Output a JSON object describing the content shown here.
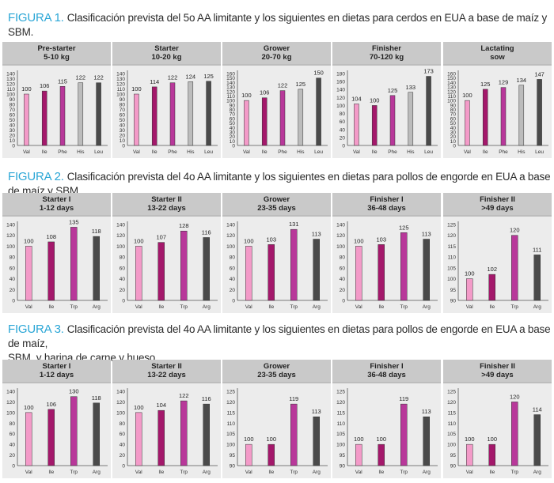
{
  "colors": {
    "bar_palette": [
      "#f39ac8",
      "#a4186b",
      "#b8389a",
      "#bcbcbc",
      "#4a4a4a"
    ],
    "title_label": "#2aa6d6",
    "panel_bg": "#ececec",
    "header_bg": "#c9c9c9"
  },
  "figures": [
    {
      "label": "FIGURA 1.",
      "title": "Clasificación prevista del 5o AA limitante y los siguientes en dietas para cerdos en EUA a base de maíz y SBM.",
      "title_line2": ""
    },
    {
      "label": "FIGURA 2.",
      "title": "Clasificación prevista del 4o AA limitante y los siguientes en dietas para pollos de engorde en EUA a base de maíz y SBM.",
      "title_line2": ""
    },
    {
      "label": "FIGURA 3.",
      "title": "Clasificación prevista del 4o AA limitante y los siguientes en dietas para pollos de engorde en EUA a base de maíz,",
      "title_line2": "SBM, y harina de carne y hueso."
    }
  ],
  "chart_data": [
    {
      "figure": 1,
      "type": "bar",
      "title": "Pre-starter",
      "subtitle": "5-10 kg",
      "categories": [
        "Val",
        "Ile",
        "Phe",
        "His",
        "Leu"
      ],
      "values": [
        100,
        106,
        115,
        122,
        122
      ],
      "ylim": [
        0,
        140
      ],
      "yticks": [
        0,
        10,
        20,
        30,
        40,
        50,
        60,
        70,
        80,
        90,
        100,
        110,
        120,
        130,
        140
      ],
      "xlabel": "",
      "ylabel": ""
    },
    {
      "figure": 1,
      "type": "bar",
      "title": "Starter",
      "subtitle": "10-20 kg",
      "categories": [
        "Val",
        "Ile",
        "Phe",
        "His",
        "Leu"
      ],
      "values": [
        100,
        114,
        122,
        124,
        125
      ],
      "ylim": [
        0,
        140
      ],
      "yticks": [
        0,
        10,
        20,
        30,
        40,
        50,
        60,
        70,
        80,
        90,
        100,
        110,
        120,
        130,
        140
      ],
      "xlabel": "",
      "ylabel": ""
    },
    {
      "figure": 1,
      "type": "bar",
      "title": "Grower",
      "subtitle": "20-70 kg",
      "categories": [
        "Val",
        "Ile",
        "Phe",
        "His",
        "Leu"
      ],
      "values": [
        100,
        106,
        122,
        125,
        150
      ],
      "ylim": [
        0,
        160
      ],
      "yticks": [
        0,
        10,
        20,
        30,
        40,
        50,
        60,
        70,
        80,
        90,
        100,
        110,
        120,
        130,
        140,
        150,
        160
      ],
      "xlabel": "",
      "ylabel": ""
    },
    {
      "figure": 1,
      "type": "bar",
      "title": "Finisher",
      "subtitle": "70-120 kg",
      "categories": [
        "Val",
        "Ile",
        "Phe",
        "His",
        "Leu"
      ],
      "values": [
        104,
        100,
        125,
        133,
        173
      ],
      "ylim": [
        0,
        180
      ],
      "yticks": [
        0,
        20,
        40,
        60,
        80,
        100,
        120,
        140,
        160,
        180
      ],
      "xlabel": "",
      "ylabel": ""
    },
    {
      "figure": 1,
      "type": "bar",
      "title": "Lactating",
      "subtitle": "sow",
      "categories": [
        "Val",
        "Ile",
        "Phe",
        "His",
        "Leu"
      ],
      "values": [
        100,
        125,
        129,
        134,
        147
      ],
      "ylim": [
        0,
        160
      ],
      "yticks": [
        0,
        10,
        20,
        30,
        40,
        50,
        60,
        70,
        80,
        90,
        100,
        110,
        120,
        130,
        140,
        150,
        160
      ],
      "xlabel": "",
      "ylabel": ""
    },
    {
      "figure": 2,
      "type": "bar",
      "title": "Starter I",
      "subtitle": "1-12 days",
      "categories": [
        "Val",
        "Ile",
        "Trp",
        "Arg"
      ],
      "values": [
        100,
        108,
        135,
        118
      ],
      "ylim": [
        0,
        140
      ],
      "yticks": [
        0,
        20,
        40,
        60,
        80,
        100,
        120,
        140
      ],
      "xlabel": "",
      "ylabel": ""
    },
    {
      "figure": 2,
      "type": "bar",
      "title": "Starter II",
      "subtitle": "13-22 days",
      "categories": [
        "Val",
        "Ile",
        "Trp",
        "Arg"
      ],
      "values": [
        100,
        107,
        128,
        116
      ],
      "ylim": [
        0,
        140
      ],
      "yticks": [
        0,
        20,
        40,
        60,
        80,
        100,
        120,
        140
      ],
      "xlabel": "",
      "ylabel": ""
    },
    {
      "figure": 2,
      "type": "bar",
      "title": "Grower",
      "subtitle": "23-35 days",
      "categories": [
        "Val",
        "Ile",
        "Trp",
        "Arg"
      ],
      "values": [
        100,
        103,
        131,
        113
      ],
      "ylim": [
        0,
        140
      ],
      "yticks": [
        0,
        20,
        40,
        60,
        80,
        100,
        120,
        140
      ],
      "xlabel": "",
      "ylabel": ""
    },
    {
      "figure": 2,
      "type": "bar",
      "title": "Finisher I",
      "subtitle": "36-48 days",
      "categories": [
        "Val",
        "Ile",
        "Trp",
        "Arg"
      ],
      "values": [
        100,
        103,
        125,
        113
      ],
      "ylim": [
        0,
        140
      ],
      "yticks": [
        0,
        20,
        40,
        60,
        80,
        100,
        120,
        140
      ],
      "xlabel": "",
      "ylabel": ""
    },
    {
      "figure": 2,
      "type": "bar",
      "title": "Finisher II",
      "subtitle": ">49 days",
      "categories": [
        "Val",
        "Ile",
        "Trp",
        "Arg"
      ],
      "values": [
        100,
        102,
        120,
        111
      ],
      "ylim": [
        90,
        125
      ],
      "yticks": [
        90,
        95,
        100,
        105,
        110,
        115,
        120,
        125
      ],
      "xlabel": "",
      "ylabel": ""
    },
    {
      "figure": 3,
      "type": "bar",
      "title": "Starter I",
      "subtitle": "1-12 days",
      "categories": [
        "Val",
        "Ile",
        "Trp",
        "Arg"
      ],
      "values": [
        100,
        106,
        130,
        118
      ],
      "ylim": [
        0,
        140
      ],
      "yticks": [
        0,
        20,
        40,
        60,
        80,
        100,
        120,
        140
      ],
      "xlabel": "",
      "ylabel": ""
    },
    {
      "figure": 3,
      "type": "bar",
      "title": "Starter II",
      "subtitle": "13-22 days",
      "categories": [
        "Val",
        "Ile",
        "Trp",
        "Arg"
      ],
      "values": [
        100,
        104,
        122,
        116
      ],
      "ylim": [
        0,
        140
      ],
      "yticks": [
        0,
        20,
        40,
        60,
        80,
        100,
        120,
        140
      ],
      "xlabel": "",
      "ylabel": ""
    },
    {
      "figure": 3,
      "type": "bar",
      "title": "Grower",
      "subtitle": "23-35 days",
      "categories": [
        "Val",
        "Ile",
        "Trp",
        "Arg"
      ],
      "values": [
        100,
        100,
        119,
        113
      ],
      "ylim": [
        90,
        125
      ],
      "yticks": [
        90,
        95,
        100,
        105,
        110,
        115,
        120,
        125
      ],
      "xlabel": "",
      "ylabel": ""
    },
    {
      "figure": 3,
      "type": "bar",
      "title": "Finisher I",
      "subtitle": "36-48 days",
      "categories": [
        "Val",
        "Ile",
        "Trp",
        "Arg"
      ],
      "values": [
        100,
        100,
        119,
        113
      ],
      "ylim": [
        90,
        125
      ],
      "yticks": [
        90,
        95,
        100,
        105,
        110,
        115,
        120,
        125
      ],
      "xlabel": "",
      "ylabel": ""
    },
    {
      "figure": 3,
      "type": "bar",
      "title": "Finisher II",
      "subtitle": ">49 days",
      "categories": [
        "Val",
        "Ile",
        "Trp",
        "Arg"
      ],
      "values": [
        100,
        100,
        120,
        114
      ],
      "ylim": [
        90,
        125
      ],
      "yticks": [
        90,
        95,
        100,
        105,
        110,
        115,
        120,
        125
      ],
      "xlabel": "",
      "ylabel": ""
    }
  ]
}
